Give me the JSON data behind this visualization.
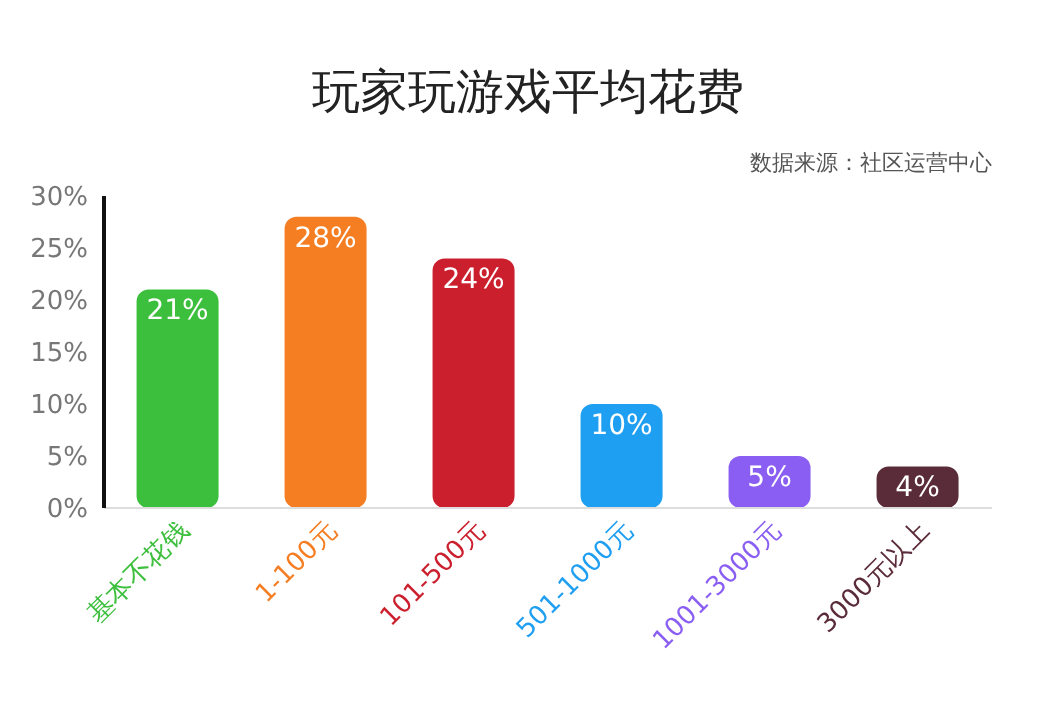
{
  "chart_data": {
    "type": "bar",
    "title": "玩家玩游戏平均花费",
    "subtitle": "数据来源：社区运营中心",
    "categories": [
      "基本不花钱",
      "1-100元",
      "101-500元",
      "501-1000元",
      "1001-3000元",
      "3000元以上"
    ],
    "values": [
      21,
      28,
      24,
      10,
      5,
      4
    ],
    "colors": [
      "#3cbf3c",
      "#f57d22",
      "#cc1f2e",
      "#1f9ff2",
      "#8a5ef2",
      "#5a2b38"
    ],
    "value_labels": [
      "21%",
      "28%",
      "24%",
      "10%",
      "5%",
      "4%"
    ],
    "ylim": [
      0,
      30
    ],
    "yticks": [
      {
        "value": 0,
        "label": "0%"
      },
      {
        "value": 5,
        "label": "5%"
      },
      {
        "value": 10,
        "label": "10%"
      },
      {
        "value": 15,
        "label": "15%"
      },
      {
        "value": 20,
        "label": "20%"
      },
      {
        "value": 25,
        "label": "25%"
      },
      {
        "value": 30,
        "label": "30%"
      }
    ],
    "grid": false,
    "legend": false
  }
}
